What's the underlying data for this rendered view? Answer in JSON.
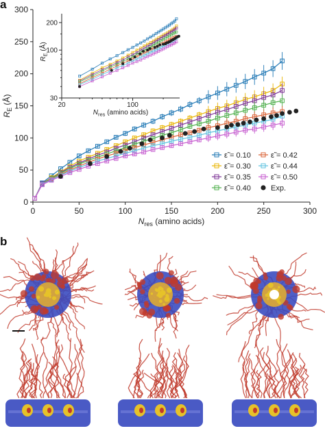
{
  "figure": {
    "panel_a_label": "a",
    "panel_b_label": "b"
  },
  "chart_data": [
    {
      "type": "line",
      "xlabel": "N",
      "xlabel_sub": "res",
      "xlabel_unit": "(amino acids)",
      "ylabel": "R",
      "ylabel_sub": "E",
      "ylabel_unit": "(Å)",
      "xlim": [
        0,
        300
      ],
      "ylim": [
        0,
        300
      ],
      "xticks": [
        0,
        50,
        100,
        150,
        200,
        250,
        300
      ],
      "yticks": [
        0,
        50,
        100,
        150,
        200,
        250,
        300
      ],
      "legend_position": "bottom-right",
      "x": [
        2,
        10,
        20,
        30,
        40,
        50,
        60,
        70,
        80,
        90,
        100,
        110,
        120,
        130,
        140,
        150,
        160,
        170,
        180,
        190,
        200,
        210,
        220,
        230,
        240,
        250,
        260,
        270
      ],
      "series": [
        {
          "name": "ε̃ = 0.10",
          "color": "#1f77b4",
          "values": [
            6,
            30,
            41,
            52,
            62,
            72,
            80,
            87,
            94,
            101,
            107,
            114,
            120,
            126,
            133,
            139,
            145,
            152,
            158,
            164,
            170,
            176,
            182,
            188,
            195,
            201,
            208,
            220
          ]
        },
        {
          "name": "ε̃ = 0.30",
          "color": "#e8b400",
          "values": [
            6,
            29,
            38,
            47,
            56,
            64,
            70,
            76,
            82,
            88,
            94,
            100,
            105,
            111,
            116,
            121,
            126,
            131,
            136,
            141,
            146,
            150,
            155,
            160,
            164,
            169,
            174,
            184
          ]
        },
        {
          "name": "ε̃ = 0.35",
          "color": "#7b3294",
          "values": [
            6,
            29,
            37,
            46,
            54,
            61,
            67,
            73,
            78,
            84,
            89,
            94,
            100,
            105,
            110,
            115,
            120,
            125,
            130,
            135,
            140,
            144,
            149,
            154,
            158,
            163,
            167,
            174
          ]
        },
        {
          "name": "ε̃ = 0.40",
          "color": "#4daf4a",
          "values": [
            6,
            28,
            37,
            45,
            52,
            59,
            65,
            70,
            75,
            80,
            85,
            90,
            95,
            99,
            104,
            108,
            113,
            118,
            122,
            126,
            131,
            135,
            139,
            143,
            147,
            151,
            155,
            158
          ]
        },
        {
          "name": "ε̃ = 0.42",
          "color": "#d95f32",
          "values": [
            6,
            28,
            36,
            43,
            50,
            56,
            62,
            67,
            72,
            76,
            80,
            85,
            89,
            93,
            97,
            101,
            105,
            108,
            112,
            116,
            119,
            123,
            126,
            130,
            133,
            136,
            139,
            141
          ]
        },
        {
          "name": "ε̃ = 0.44",
          "color": "#5bc0de",
          "values": [
            6,
            28,
            35,
            42,
            48,
            54,
            59,
            64,
            68,
            72,
            76,
            80,
            84,
            88,
            91,
            95,
            98,
            101,
            104,
            108,
            111,
            114,
            117,
            120,
            123,
            126,
            129,
            134
          ]
        },
        {
          "name": "ε̃ = 0.50",
          "color": "#c65bcf",
          "values": [
            6,
            27,
            34,
            40,
            46,
            51,
            56,
            60,
            64,
            68,
            72,
            75,
            78,
            82,
            85,
            88,
            91,
            94,
            97,
            100,
            103,
            106,
            109,
            112,
            114,
            117,
            120,
            123
          ]
        }
      ],
      "experimental": {
        "name": "Exp.",
        "color": "#222222",
        "x": [
          30,
          62,
          80,
          95,
          105,
          118,
          127,
          140,
          148,
          165,
          175,
          185,
          200,
          210,
          215,
          222,
          228,
          235,
          242,
          250,
          258,
          264,
          270,
          278,
          285
        ],
        "y": [
          40,
          60,
          71,
          79,
          84,
          91,
          97,
          100,
          104,
          107,
          110,
          114,
          116,
          117,
          120,
          121,
          123,
          125,
          128,
          130,
          133,
          135,
          138,
          140,
          142
        ]
      },
      "legend_order": [
        [
          "ε̃ = 0.10",
          "ε̃ = 0.42"
        ],
        [
          "ε̃ = 0.30",
          "ε̃ = 0.44"
        ],
        [
          "ε̃ = 0.35",
          "ε̃ = 0.50"
        ],
        [
          "ε̃ = 0.40",
          "Exp."
        ]
      ]
    },
    {
      "type": "line",
      "scale": "log-log",
      "xlabel": "N",
      "xlabel_sub": "res",
      "xlabel_unit": "(amino acids)",
      "ylabel": "R",
      "ylabel_sub": "E",
      "ylabel_unit": "(Å)",
      "xlim": [
        20,
        290
      ],
      "ylim": [
        30,
        250
      ],
      "xticks": [
        20,
        100
      ],
      "yticks": [
        30,
        100,
        200
      ],
      "x": [
        30,
        40,
        50,
        60,
        70,
        80,
        90,
        100,
        110,
        120,
        130,
        140,
        150,
        160,
        170,
        180,
        190,
        200,
        210,
        220,
        230,
        240,
        250,
        260,
        270
      ],
      "series_ref": "same series as main plot"
    }
  ],
  "panel_b": {
    "description_none": "",
    "scale_bar": true,
    "render_colors": {
      "tails": "#c0392b",
      "core_blue": "#3b4cc0",
      "core_yellow": "#e6c229"
    }
  }
}
